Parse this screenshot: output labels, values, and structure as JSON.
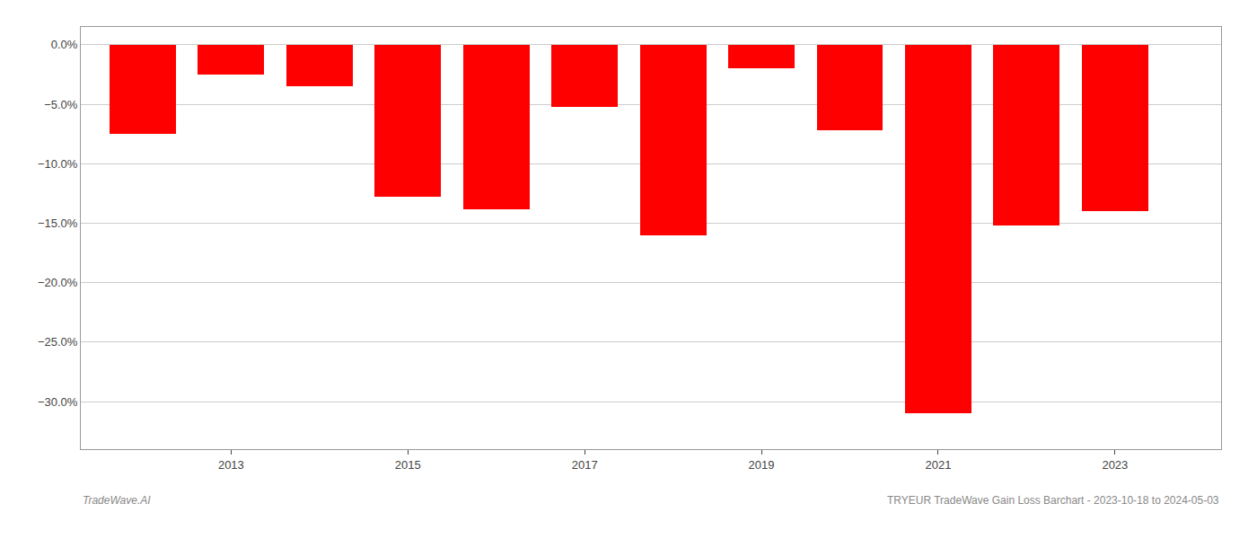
{
  "chart_data": {
    "type": "bar",
    "x": [
      2012,
      2013,
      2014,
      2015,
      2016,
      2017,
      2018,
      2019,
      2020,
      2021,
      2022,
      2023
    ],
    "values": [
      -7.5,
      -2.5,
      -3.5,
      -12.8,
      -13.8,
      -5.2,
      -16.0,
      -2.0,
      -7.2,
      -31.0,
      -15.2,
      -14.0
    ],
    "color": "#ff0000",
    "xlim": [
      2011.3,
      2024.2
    ],
    "xticks": [
      2013,
      2015,
      2017,
      2019,
      2021,
      2023
    ],
    "ylim": [
      -34,
      1.5
    ],
    "yticks": [
      {
        "value": 0.0,
        "label": "0.0%"
      },
      {
        "value": -5.0,
        "label": "−5.0%"
      },
      {
        "value": -10.0,
        "label": "−10.0%"
      },
      {
        "value": -15.0,
        "label": "−15.0%"
      },
      {
        "value": -20.0,
        "label": "−20.0%"
      },
      {
        "value": -25.0,
        "label": "−25.0%"
      },
      {
        "value": -30.0,
        "label": "−30.0%"
      }
    ],
    "grid": true,
    "annotations": [
      "TradeWave.AI",
      "TRYEUR TradeWave Gain Loss Barchart - 2023-10-18 to 2024-05-03"
    ]
  }
}
